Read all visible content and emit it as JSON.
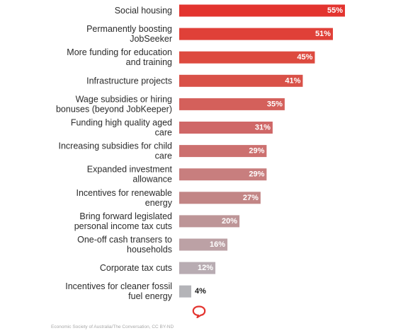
{
  "chart_data": {
    "type": "bar",
    "orientation": "horizontal",
    "categories": [
      [
        "Social housing"
      ],
      [
        "Permanently boosting",
        "JobSeeker"
      ],
      [
        "More funding for education",
        "and training"
      ],
      [
        "Infrastructure projects"
      ],
      [
        "Wage subsidies or hiring",
        "bonuses (beyond JobKeeper)"
      ],
      [
        "Funding high quality aged",
        "care"
      ],
      [
        "Increasing subsidies for child",
        "care"
      ],
      [
        "Expanded investment",
        "allowance"
      ],
      [
        "Incentives for renewable",
        "energy"
      ],
      [
        "Bring forward legislated",
        "personal income tax cuts"
      ],
      [
        "One-off cash transers to",
        "households"
      ],
      [
        "Corporate tax cuts"
      ],
      [
        "Incentives for cleaner fossil",
        "fuel energy"
      ]
    ],
    "values": [
      55,
      51,
      45,
      41,
      35,
      31,
      29,
      29,
      27,
      20,
      16,
      12,
      4
    ],
    "value_labels": [
      "55%",
      "51%",
      "45%",
      "41%",
      "35%",
      "31%",
      "29%",
      "29%",
      "27%",
      "20%",
      "16%",
      "12%",
      "4%"
    ],
    "colors": [
      "#e3342f",
      "#e04038",
      "#dd4a3f",
      "#d95148",
      "#d4605b",
      "#cf6767",
      "#cc706f",
      "#c87e7e",
      "#c28585",
      "#bd9597",
      "#bca1a5",
      "#b8acb2",
      "#b4b4b8"
    ],
    "xlim": [
      0,
      55
    ],
    "grid": false,
    "legend": "none"
  },
  "source": "Economic Society of Australia/The Conversation, CC BY-ND",
  "logo_icon": "speech-bubble-icon"
}
